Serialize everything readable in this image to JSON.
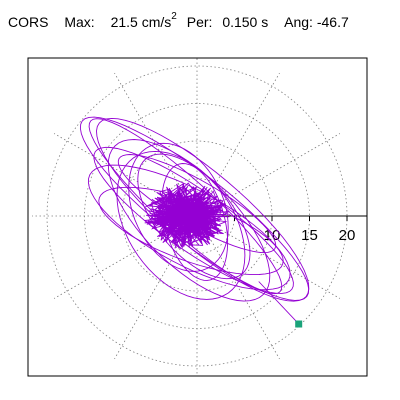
{
  "header": {
    "station": "CORS",
    "max_label": "Max:",
    "max_value": "21.5",
    "max_unit": "cm/s",
    "max_unit_exp": "2",
    "per_label": "Per:",
    "per_value": "0.150 s",
    "ang_label": "Ang:",
    "ang_value": "-46.7"
  },
  "chart_data": {
    "type": "polar-particle-motion",
    "radial_ticks": [
      5,
      10,
      15,
      20
    ],
    "tick_labels": [
      "10",
      "15",
      "20"
    ],
    "max_amplitude": 21.5,
    "max_angle_deg": -46.7,
    "grid": "dotted-circles-and-spokes",
    "colors": {
      "trace": "#9400d3",
      "marker": "#1aa37a",
      "grid": "#808080",
      "axis": "#000000"
    }
  }
}
